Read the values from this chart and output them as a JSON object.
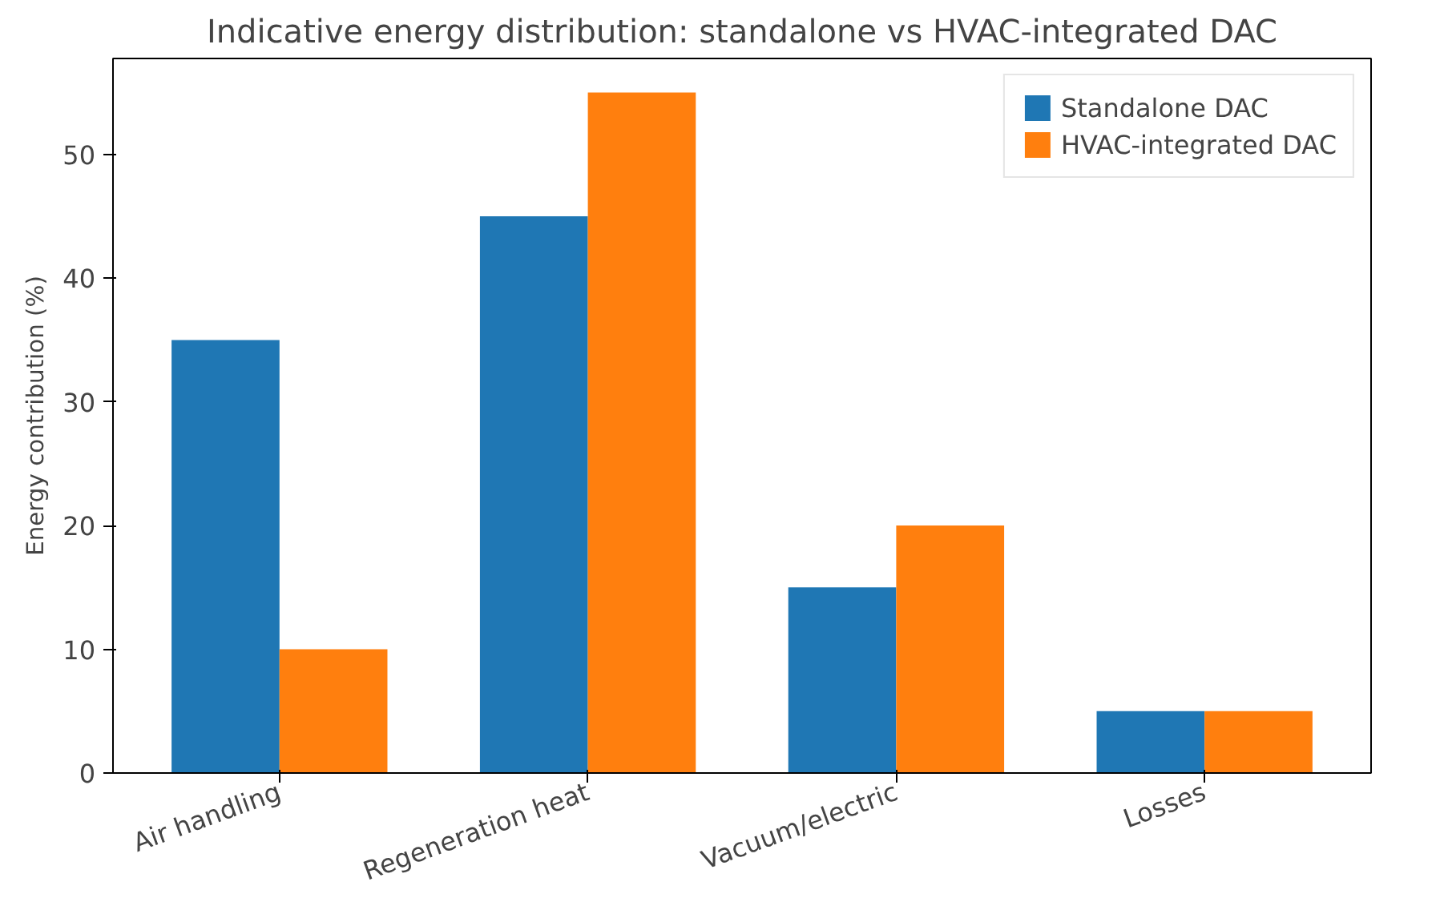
{
  "chart_data": {
    "type": "bar",
    "title": "Indicative energy distribution: standalone vs HVAC-integrated DAC",
    "ylabel": "Energy contribution (%)",
    "categories": [
      "Air handling",
      "Regeneration heat",
      "Vacuum/electric",
      "Losses"
    ],
    "series": [
      {
        "name": "Standalone DAC",
        "color": "#1f77b4",
        "values": [
          35,
          45,
          15,
          5
        ]
      },
      {
        "name": "HVAC-integrated DAC",
        "color": "#ff7f0e",
        "values": [
          10,
          55,
          20,
          5
        ]
      }
    ],
    "ylim": [
      0,
      57.75
    ],
    "yticks": [
      0,
      10,
      20,
      30,
      40,
      50
    ],
    "grid": false,
    "legend": "top right"
  }
}
